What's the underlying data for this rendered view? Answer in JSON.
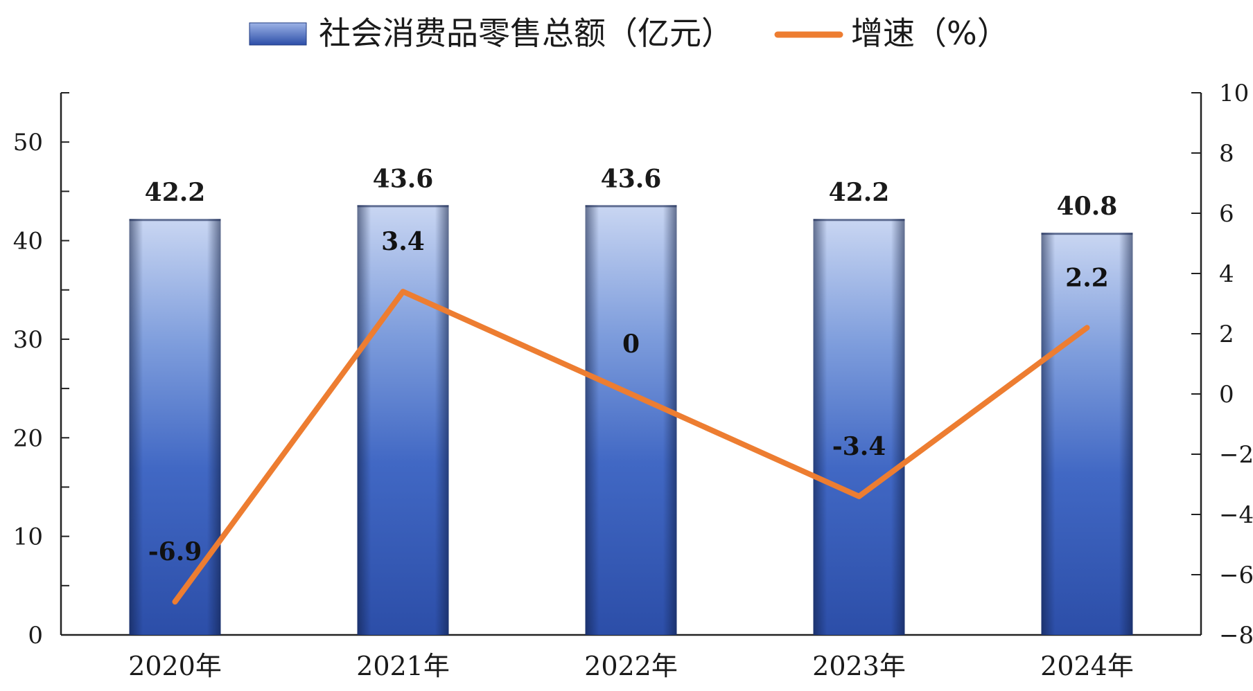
{
  "chart_data": {
    "type": "bar",
    "categories": [
      "2020年",
      "2021年",
      "2022年",
      "2023年",
      "2024年"
    ],
    "series": [
      {
        "name": "社会消费品零售总额（亿元）",
        "type": "bar",
        "axis": "left",
        "values": [
          42.2,
          43.6,
          43.6,
          42.2,
          40.8
        ],
        "labels": [
          "42.2",
          "43.6",
          "43.6",
          "42.2",
          "40.8"
        ],
        "color": "#3e66c2"
      },
      {
        "name": "增速（%）",
        "type": "line",
        "axis": "right",
        "values": [
          -6.9,
          3.4,
          0,
          -3.4,
          2.2
        ],
        "labels": [
          "-6.9",
          "3.4",
          "0",
          "-3.4",
          "2.2"
        ],
        "color": "#ed7d31"
      }
    ],
    "y_left": {
      "ylim": [
        0,
        55
      ],
      "ticks": [
        0,
        10,
        20,
        30,
        40,
        50
      ],
      "tick_labels": [
        "0",
        "10",
        "20",
        "30",
        "40",
        "50"
      ],
      "minor_step": 5
    },
    "y_right": {
      "ylim": [
        -8,
        10
      ],
      "ticks": [
        -8,
        -6,
        -4,
        -2,
        0,
        2,
        4,
        6,
        8,
        10
      ],
      "tick_labels": [
        "−8",
        "−6",
        "−4",
        "−2",
        "0",
        "2",
        "4",
        "6",
        "8",
        "10"
      ]
    },
    "legend_position": "top",
    "grid": false
  }
}
